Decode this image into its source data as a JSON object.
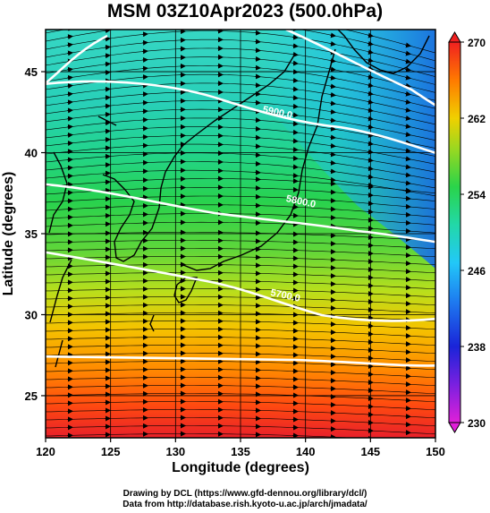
{
  "title": "MSM 03Z10Apr2023 (500.0hPa)",
  "map": {
    "lon_range": [
      120,
      150
    ],
    "lat_range": [
      22.4,
      47.6
    ],
    "x_ticks": [
      "120",
      "125",
      "130",
      "135",
      "140",
      "145",
      "150"
    ],
    "y_ticks": [
      "25",
      "30",
      "35",
      "40",
      "45"
    ],
    "xlabel": "Longitude (degrees)",
    "ylabel": "Latitude  (degrees)",
    "colorbar": {
      "min": 230,
      "max": 270,
      "labels": [
        "270",
        "262",
        "254",
        "246",
        "238",
        "230"
      ]
    },
    "contours": [
      {
        "label": "5700.0",
        "label_lon": 138.4,
        "label_lat": 31.0
      },
      {
        "label": "5800.0",
        "label_lon": 139.6,
        "label_lat": 36.8
      },
      {
        "label": "5900.0",
        "label_lon": 137.8,
        "label_lat": 42.3
      }
    ]
  },
  "footer": {
    "line1": "Drawing by DCL (https://www.gfd-dennou.org/library/dcl/)",
    "line2": "Data from http://database.rish.kyoto-u.ac.jp/arch/jmadata/"
  }
}
